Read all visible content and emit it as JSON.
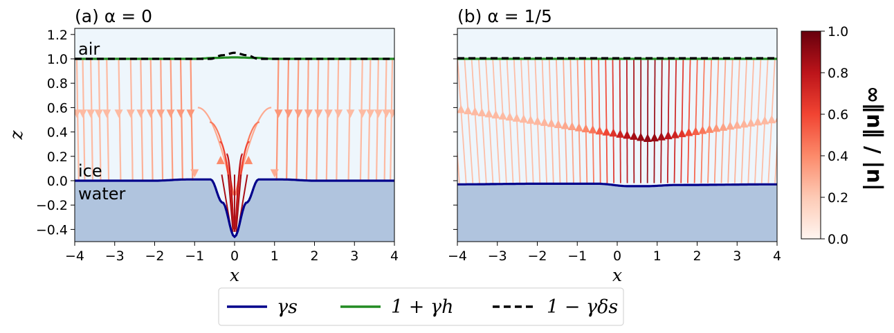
{
  "chart_data": [
    {
      "type": "line",
      "title": "(a) α = 0",
      "xlabel": "x",
      "ylabel": "z",
      "xlim": [
        -4,
        4
      ],
      "ylim": [
        -0.5,
        1.25
      ],
      "xticks": [
        "−4",
        "−3",
        "−2",
        "−1",
        "0",
        "1",
        "2",
        "3",
        "4"
      ],
      "yticks": [
        "−0.4",
        "−0.2",
        "0.0",
        "0.2",
        "0.4",
        "0.6",
        "0.8",
        "1.0",
        "1.2"
      ],
      "region_labels": {
        "air": "air",
        "ice": "ice",
        "water": "water"
      },
      "series": [
        {
          "name": "γs",
          "color": "#00008b",
          "x": [
            -4,
            -2,
            -1.2,
            -0.6,
            -0.3,
            0,
            0.3,
            0.6,
            1.2,
            2,
            4
          ],
          "y": [
            0,
            0,
            0.01,
            0.01,
            -0.18,
            -0.46,
            -0.18,
            0.01,
            0.01,
            0,
            0
          ]
        },
        {
          "name": "1 + γh",
          "color": "#228b22",
          "x": [
            -4,
            -1,
            -0.5,
            0,
            0.5,
            1,
            4
          ],
          "y": [
            1,
            1,
            1.008,
            1.012,
            1.008,
            1,
            1
          ]
        },
        {
          "name": "1 − γδs",
          "color": "#000000",
          "x": [
            -4,
            -1,
            -0.6,
            -0.3,
            0,
            0.3,
            0.6,
            1,
            4
          ],
          "y": [
            1,
            1,
            1.0,
            1.03,
            1.05,
            1.03,
            1.0,
            1,
            1
          ]
        }
      ],
      "streamlines": "downward flow from air to ice, converging toward the depression at x = 0 with peak speed near the trough"
    },
    {
      "type": "line",
      "title": "(b) α = 1/5",
      "xlabel": "x",
      "xlim": [
        -4,
        4
      ],
      "ylim": [
        -0.5,
        1.25
      ],
      "xticks": [
        "−4",
        "−3",
        "−2",
        "−1",
        "0",
        "1",
        "2",
        "3",
        "4"
      ],
      "series": [
        {
          "name": "γs",
          "color": "#00008b",
          "x": [
            -4,
            -2,
            -0.5,
            0.3,
            0.7,
            1.5,
            4
          ],
          "y": [
            -0.03,
            -0.025,
            -0.025,
            -0.045,
            -0.045,
            -0.035,
            -0.03
          ]
        },
        {
          "name": "1 + γh",
          "color": "#228b22",
          "x": [
            -4,
            4
          ],
          "y": [
            1,
            1
          ]
        },
        {
          "name": "1 − γδs",
          "color": "#000000",
          "x": [
            -4,
            4
          ],
          "y": [
            1.005,
            1.005
          ]
        }
      ],
      "streamlines": "upward flow from ice to air, fastest near x ≈ 0.5–1"
    }
  ],
  "colorbar": {
    "label": "|u| / ‖u‖∞",
    "ticks": [
      "0.0",
      "0.2",
      "0.4",
      "0.6",
      "0.8",
      "1.0"
    ],
    "range": [
      0,
      1
    ],
    "colormap": "Reds"
  },
  "legend": {
    "items": [
      {
        "label": "γs",
        "color": "#00008b",
        "style": "solid"
      },
      {
        "label": "1 + γh",
        "color": "#228b22",
        "style": "solid"
      },
      {
        "label": "1 − γδs",
        "color": "#000000",
        "style": "dashed"
      }
    ]
  },
  "colors": {
    "air": "#eef6fc",
    "water": "#b0c4de",
    "ice_line": "#00008b",
    "surface": "#228b22"
  }
}
